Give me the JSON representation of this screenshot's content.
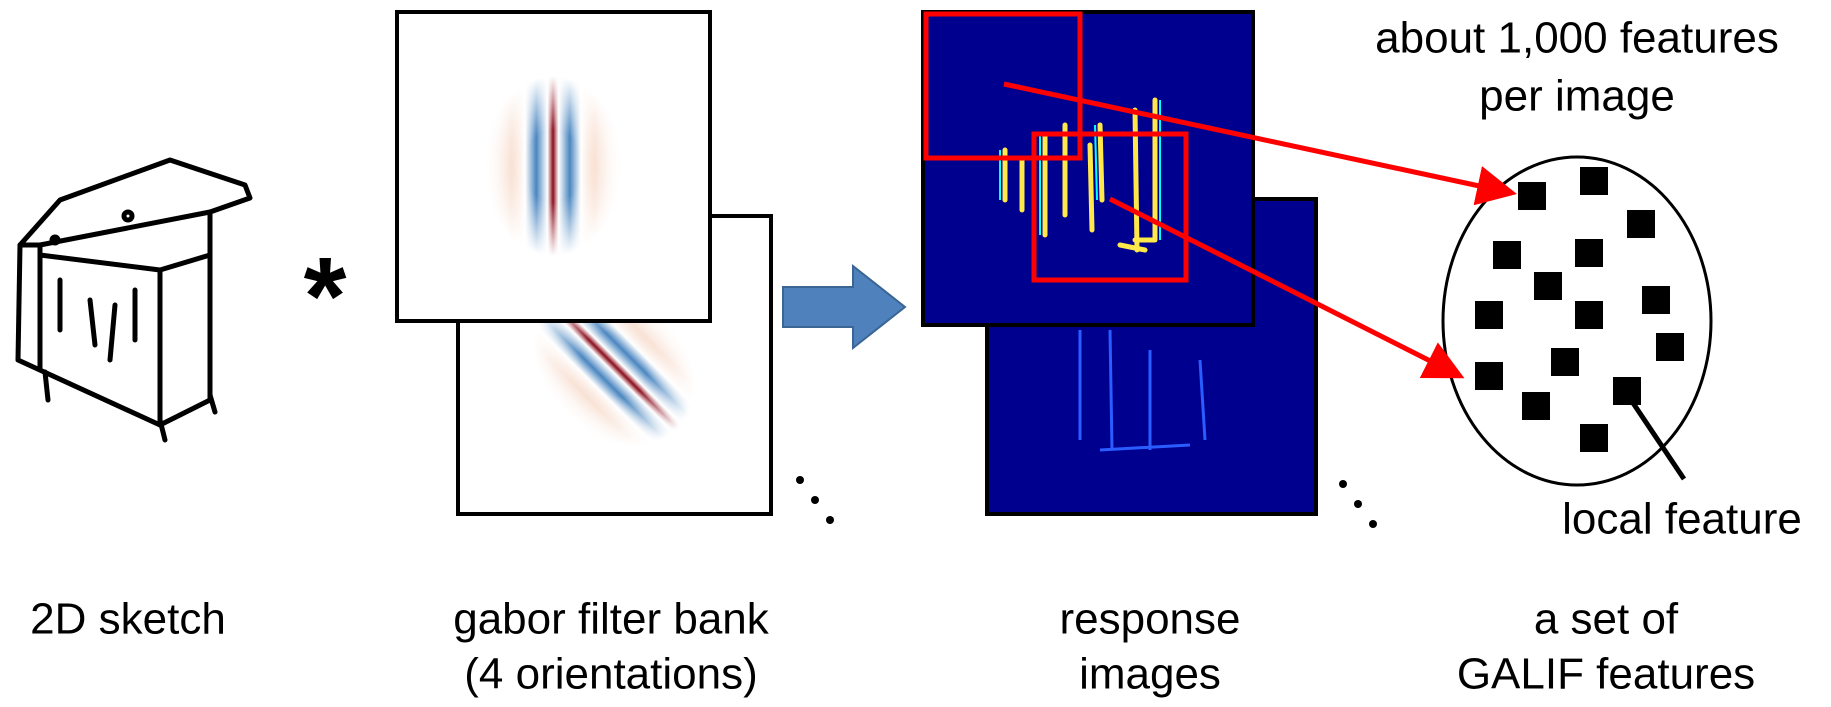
{
  "operator": "*",
  "labels": {
    "feature_count": [
      "about 1,000 features",
      "per image"
    ],
    "local_feature": "local feature",
    "sketch": "2D sketch",
    "filter_bank": [
      "gabor filter bank",
      "(4 orientations)"
    ],
    "response": [
      "response",
      "images"
    ],
    "features": [
      "a set of",
      "GALIF features"
    ]
  }
}
